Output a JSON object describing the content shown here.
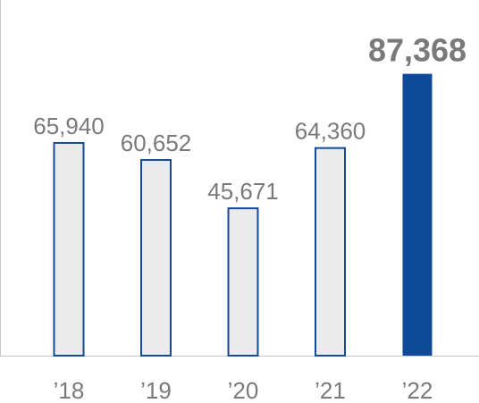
{
  "chart_data": {
    "type": "bar",
    "categories": [
      "’18",
      "’19",
      "’20",
      "’21",
      "’22"
    ],
    "values": [
      65940,
      60652,
      45671,
      64360,
      87368
    ],
    "value_labels": [
      "65,940",
      "60,652",
      "45,671",
      "64,360",
      "87,368"
    ],
    "highlight_index": 4,
    "title": "",
    "xlabel": "",
    "ylabel": "",
    "ylim": [
      0,
      100000
    ],
    "grid": false,
    "legend": "none"
  },
  "colors": {
    "normal_fill": "#ebebeb",
    "normal_stroke": "#154a96",
    "highlight_fill": "#0f4a99",
    "highlight_label": "#0f4a99",
    "label": "#7a7a7a",
    "axis": "#c8c8c8"
  }
}
